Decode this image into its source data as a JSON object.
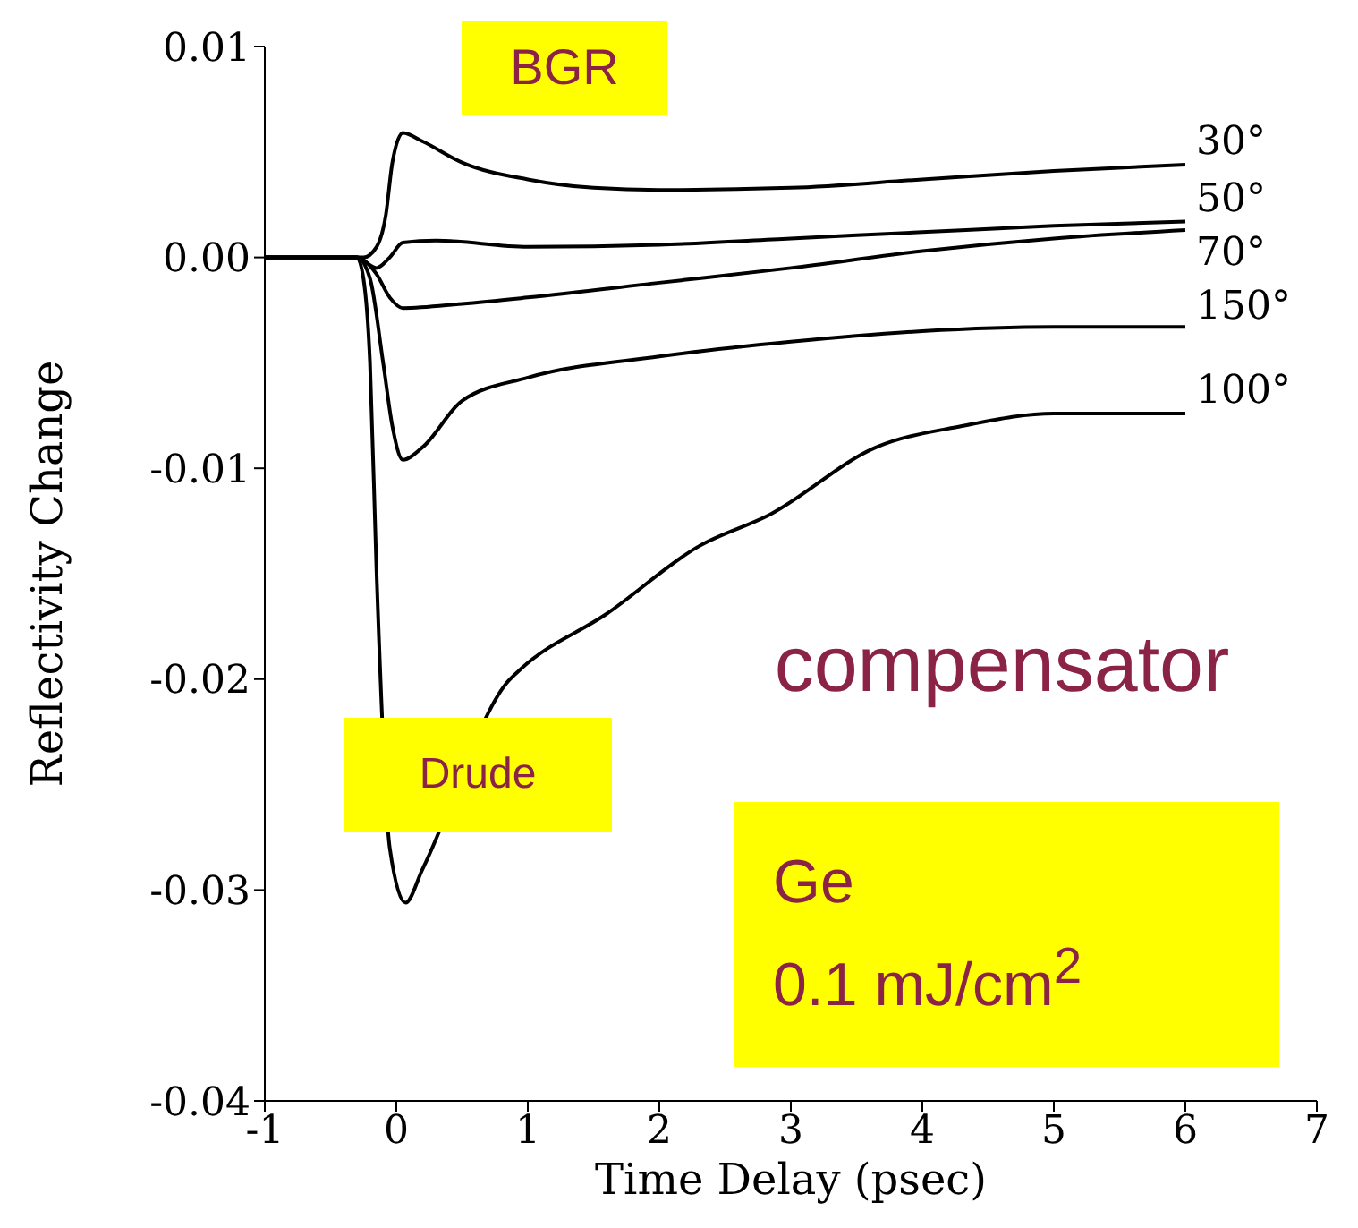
{
  "chart_data": {
    "type": "line",
    "xlabel": "Time Delay (psec)",
    "ylabel": "Reflectivity Change",
    "xlim": [
      -1,
      7
    ],
    "ylim": [
      -0.04,
      0.01
    ],
    "xticks": [
      -1,
      0,
      1,
      2,
      3,
      4,
      5,
      6,
      7
    ],
    "yticks": [
      -0.04,
      -0.03,
      -0.02,
      -0.01,
      {
        "value": 0,
        "label": "0.00"
      },
      0.01
    ],
    "legend": false,
    "grid": false,
    "marker": "none",
    "line_style": "solid",
    "annotations": [
      "BGR",
      "Drude",
      "compensator",
      "Ge\n0.1 mJ/cm$^{2}$"
    ],
    "series": [
      {
        "name": "30°",
        "color": "#000000",
        "x": [
          -1,
          -0.5,
          -0.25,
          -0.15,
          -0.08,
          -0.03,
          0.05,
          0.2,
          0.5,
          1,
          1.5,
          2,
          3,
          4,
          5,
          6
        ],
        "values": [
          0,
          0,
          0,
          0.0005,
          0.002,
          0.0045,
          0.0059,
          0.0055,
          0.0045,
          0.0037,
          0.0033,
          0.0032,
          0.0033,
          0.0037,
          0.0041,
          0.0044
        ]
      },
      {
        "name": "50°",
        "color": "#000000",
        "x": [
          -1,
          -0.3,
          -0.15,
          -0.05,
          0.05,
          0.3,
          1,
          2,
          3,
          4,
          5,
          6
        ],
        "values": [
          0,
          0,
          -0.0005,
          0,
          0.0007,
          0.0008,
          0.0005,
          0.0006,
          0.0009,
          0.0012,
          0.0015,
          0.0017
        ]
      },
      {
        "name": "70°",
        "color": "#000000",
        "x": [
          -1,
          -0.3,
          -0.15,
          -0.05,
          0.05,
          0.5,
          1,
          2,
          3,
          4,
          5,
          6
        ],
        "values": [
          0,
          0,
          -0.0008,
          -0.0019,
          -0.0024,
          -0.0022,
          -0.0019,
          -0.0012,
          -0.0005,
          0.0003,
          0.0009,
          0.0013
        ]
      },
      {
        "name": "150°",
        "color": "#000000",
        "x": [
          -1,
          -0.3,
          -0.2,
          -0.1,
          -0.03,
          0.05,
          0.2,
          0.5,
          1,
          2,
          3,
          4,
          5,
          6
        ],
        "values": [
          0,
          0,
          -0.001,
          -0.005,
          -0.008,
          -0.0096,
          -0.009,
          -0.0068,
          -0.0057,
          -0.0047,
          -0.004,
          -0.0035,
          -0.0033,
          -0.0033
        ]
      },
      {
        "name": "100°",
        "color": "#000000",
        "x": [
          -1,
          -0.3,
          -0.25,
          -0.2,
          -0.15,
          -0.05,
          0.07,
          0.2,
          0.85,
          0.95,
          1.6,
          2.3,
          2.84,
          3.65,
          4.3,
          5,
          6
        ],
        "values": [
          0,
          0,
          -0.001,
          -0.005,
          -0.015,
          -0.028,
          -0.0306,
          -0.029,
          -0.0201,
          -0.0195,
          -0.0169,
          -0.0137,
          -0.0122,
          -0.009,
          -0.008,
          -0.0074,
          -0.0074
        ]
      }
    ]
  }
}
